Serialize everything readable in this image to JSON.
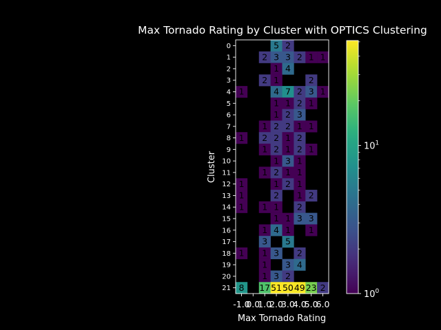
{
  "chart_data": {
    "type": "heatmap",
    "title": "Max Tornado Rating by Cluster with OPTICS Clustering",
    "xlabel": "Max Tornado Rating",
    "ylabel": "Cluster",
    "x_categories": [
      "-1.0",
      "0.0",
      "1.0",
      "2.0",
      "3.0",
      "4.0",
      "5.0",
      "6.0"
    ],
    "y_categories": [
      "0",
      "1",
      "2",
      "3",
      "4",
      "5",
      "6",
      "7",
      "8",
      "9",
      "10",
      "11",
      "12",
      "13",
      "14",
      "15",
      "16",
      "17",
      "18",
      "19",
      "20",
      "21"
    ],
    "values": [
      [
        null,
        null,
        null,
        5,
        2,
        null,
        null,
        null
      ],
      [
        null,
        null,
        2,
        3,
        3,
        2,
        1,
        1
      ],
      [
        null,
        null,
        null,
        1,
        4,
        null,
        null,
        null
      ],
      [
        null,
        null,
        2,
        1,
        null,
        null,
        2,
        null
      ],
      [
        1,
        null,
        null,
        4,
        7,
        2,
        3,
        1
      ],
      [
        null,
        null,
        null,
        1,
        1,
        2,
        1,
        null
      ],
      [
        null,
        null,
        null,
        1,
        2,
        3,
        null,
        null
      ],
      [
        null,
        null,
        1,
        2,
        2,
        1,
        1,
        null
      ],
      [
        1,
        null,
        2,
        2,
        1,
        2,
        null,
        null
      ],
      [
        null,
        null,
        1,
        2,
        1,
        2,
        1,
        null
      ],
      [
        null,
        null,
        null,
        1,
        3,
        1,
        null,
        null
      ],
      [
        null,
        null,
        1,
        2,
        1,
        1,
        null,
        null
      ],
      [
        1,
        null,
        null,
        1,
        2,
        1,
        null,
        null
      ],
      [
        1,
        null,
        null,
        2,
        null,
        1,
        2,
        null
      ],
      [
        1,
        null,
        1,
        1,
        null,
        2,
        null,
        null
      ],
      [
        null,
        null,
        null,
        1,
        1,
        3,
        3,
        null
      ],
      [
        null,
        null,
        1,
        4,
        1,
        null,
        1,
        null
      ],
      [
        null,
        null,
        3,
        null,
        5,
        null,
        null,
        null
      ],
      [
        1,
        null,
        1,
        3,
        null,
        2,
        null,
        null
      ],
      [
        null,
        null,
        1,
        null,
        3,
        4,
        null,
        null
      ],
      [
        null,
        null,
        1,
        3,
        2,
        null,
        null,
        null
      ],
      [
        8,
        null,
        17,
        51,
        50,
        49,
        23,
        2
      ]
    ],
    "colorscale": "viridis",
    "color_scale_type": "log",
    "colorbar": {
      "range": [
        1,
        51
      ],
      "tick_labels": [
        "10^0",
        "10^1"
      ]
    },
    "grid": false
  }
}
